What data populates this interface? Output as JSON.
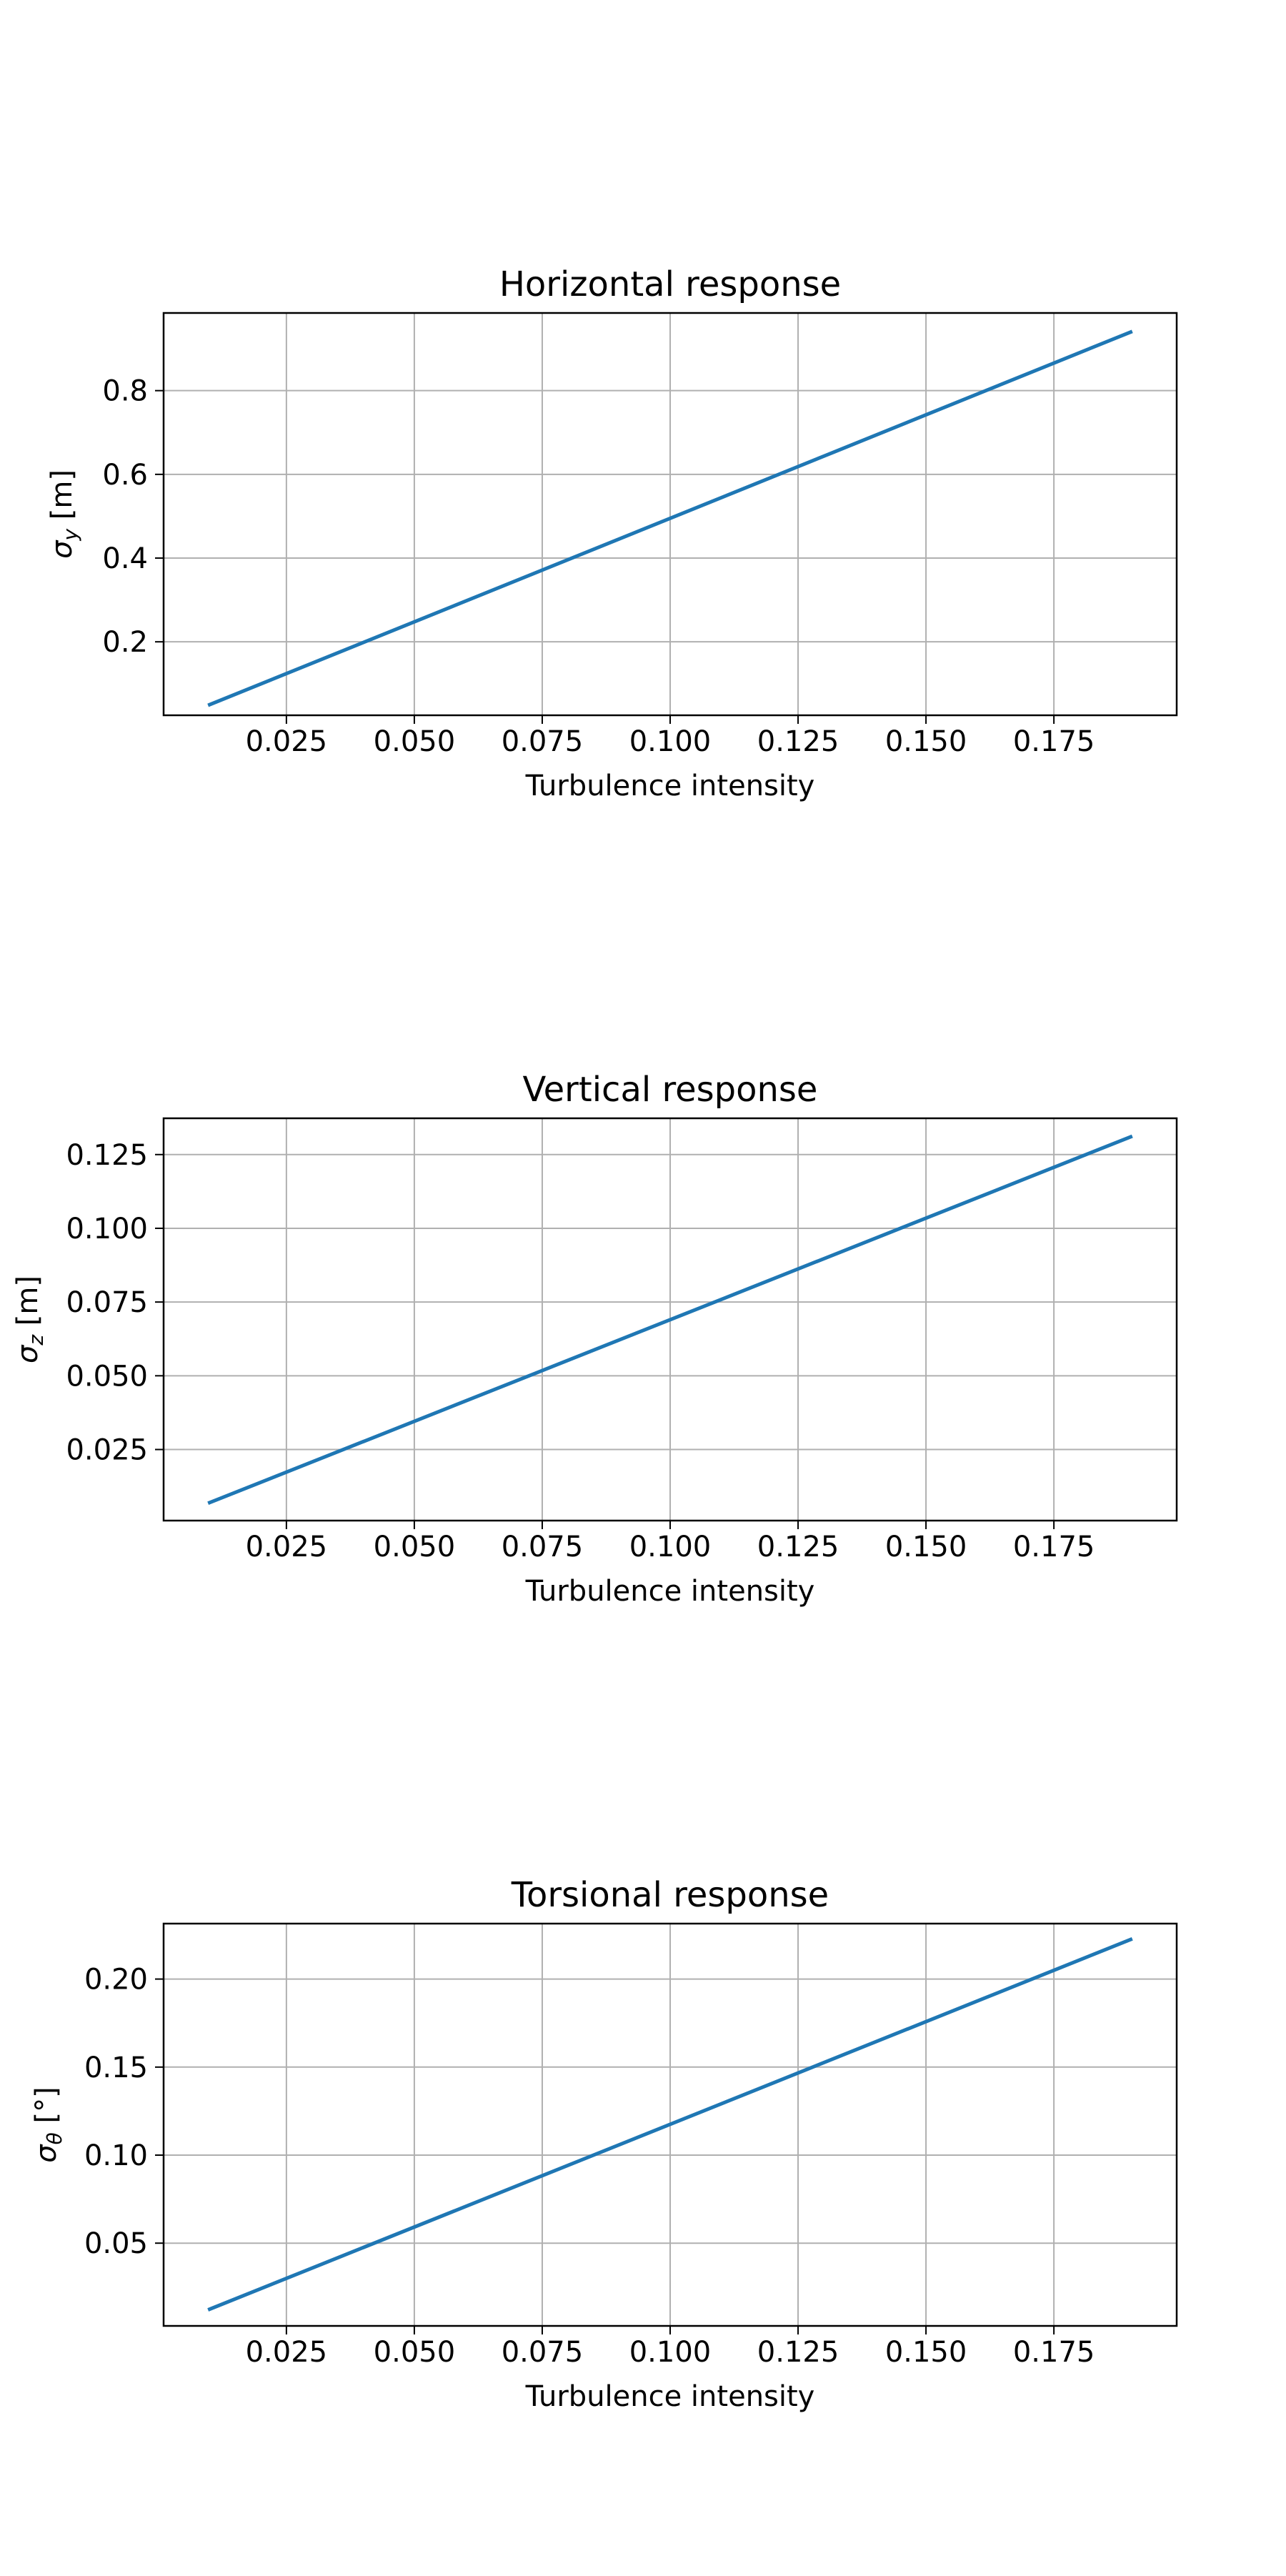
{
  "chart_data": [
    {
      "type": "line",
      "title": "Horizontal response",
      "xlabel": "Turbulence intensity",
      "ylabel": {
        "symbol": "σ",
        "subscript": "y",
        "unit": "[m]"
      },
      "xlim": [
        0.001,
        0.199
      ],
      "ylim": [
        0.0245,
        0.9855
      ],
      "xticks": [
        0.025,
        0.05,
        0.075,
        0.1,
        0.125,
        0.15,
        0.175
      ],
      "xtick_labels": [
        "0.025",
        "0.050",
        "0.075",
        "0.100",
        "0.125",
        "0.150",
        "0.175"
      ],
      "yticks": [
        0.2,
        0.4,
        0.6,
        0.8
      ],
      "ytick_labels": [
        "0.2",
        "0.4",
        "0.6",
        "0.8"
      ],
      "grid": true,
      "series": [
        {
          "x": [
            0.01,
            0.19
          ],
          "y": [
            0.05,
            0.94
          ],
          "color": "#1f77b4"
        }
      ]
    },
    {
      "type": "line",
      "title": "Vertical response",
      "xlabel": "Turbulence intensity",
      "ylabel": {
        "symbol": "σ",
        "subscript": "z",
        "unit": "[m]"
      },
      "xlim": [
        0.001,
        0.199
      ],
      "ylim": [
        0.0009,
        0.1373
      ],
      "xticks": [
        0.025,
        0.05,
        0.075,
        0.1,
        0.125,
        0.15,
        0.175
      ],
      "xtick_labels": [
        "0.025",
        "0.050",
        "0.075",
        "0.100",
        "0.125",
        "0.150",
        "0.175"
      ],
      "yticks": [
        0.025,
        0.05,
        0.075,
        0.1,
        0.125
      ],
      "ytick_labels": [
        "0.025",
        "0.050",
        "0.075",
        "0.100",
        "0.125"
      ],
      "grid": true,
      "series": [
        {
          "x": [
            0.01,
            0.19
          ],
          "y": [
            0.007,
            0.131
          ],
          "color": "#1f77b4"
        }
      ]
    },
    {
      "type": "line",
      "title": "Torsional response",
      "xlabel": "Turbulence intensity",
      "ylabel": {
        "symbol": "σ",
        "subscript": "θ",
        "unit": "[°]"
      },
      "xlim": [
        0.001,
        0.199
      ],
      "ylim": [
        0.003,
        0.2315
      ],
      "xticks": [
        0.025,
        0.05,
        0.075,
        0.1,
        0.125,
        0.15,
        0.175
      ],
      "xtick_labels": [
        "0.025",
        "0.050",
        "0.075",
        "0.100",
        "0.125",
        "0.150",
        "0.175"
      ],
      "yticks": [
        0.05,
        0.1,
        0.15,
        0.2
      ],
      "ytick_labels": [
        "0.05",
        "0.10",
        "0.15",
        "0.20"
      ],
      "grid": true,
      "series": [
        {
          "x": [
            0.01,
            0.19
          ],
          "y": [
            0.0125,
            0.2225
          ],
          "color": "#1f77b4"
        }
      ]
    }
  ]
}
